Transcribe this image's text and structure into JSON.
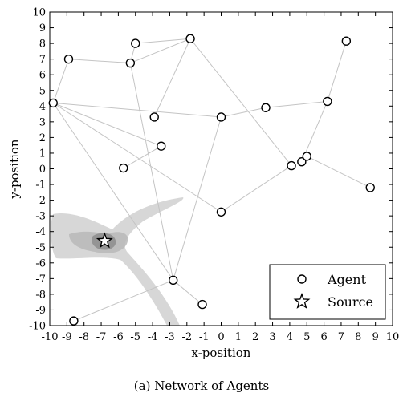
{
  "caption": "(a) Network of Agents",
  "chart_data": {
    "type": "scatter",
    "xlabel": "x-position",
    "ylabel": "y-position",
    "xlim": [
      -10,
      10
    ],
    "ylim": [
      -10,
      10
    ],
    "xticks": [
      -10,
      -9,
      -8,
      -7,
      -6,
      -5,
      -4,
      -3,
      -2,
      -1,
      0,
      1,
      2,
      3,
      4,
      5,
      6,
      7,
      8,
      9,
      10
    ],
    "yticks": [
      -10,
      -9,
      -8,
      -7,
      -6,
      -5,
      -4,
      -3,
      -2,
      -1,
      0,
      1,
      2,
      3,
      4,
      5,
      6,
      7,
      8,
      9,
      10
    ],
    "grid": false,
    "legend_position": "bottom-right",
    "series": [
      {
        "name": "Agent",
        "marker": "circle",
        "points": [
          [
            -8.9,
            7.0
          ],
          [
            -5.0,
            8.0
          ],
          [
            -5.3,
            6.75
          ],
          [
            -1.8,
            8.3
          ],
          [
            7.3,
            8.15
          ],
          [
            -9.8,
            4.2
          ],
          [
            -3.9,
            3.3
          ],
          [
            0.0,
            3.3
          ],
          [
            2.6,
            3.9
          ],
          [
            6.2,
            4.3
          ],
          [
            -3.5,
            1.45
          ],
          [
            -5.7,
            0.05
          ],
          [
            4.1,
            0.2
          ],
          [
            4.7,
            0.45
          ],
          [
            5.0,
            0.8
          ],
          [
            8.7,
            -1.2
          ],
          [
            0.0,
            -2.75
          ],
          [
            -2.8,
            -7.1
          ],
          [
            -1.1,
            -8.65
          ],
          [
            -8.6,
            -9.7
          ]
        ]
      },
      {
        "name": "Source",
        "marker": "star",
        "points": [
          [
            -6.8,
            -4.6
          ]
        ]
      }
    ],
    "edges": [
      [
        0,
        5
      ],
      [
        0,
        2
      ],
      [
        2,
        1
      ],
      [
        1,
        3
      ],
      [
        2,
        17
      ],
      [
        3,
        6
      ],
      [
        3,
        12
      ],
      [
        5,
        7
      ],
      [
        5,
        10
      ],
      [
        5,
        16
      ],
      [
        5,
        17
      ],
      [
        7,
        8
      ],
      [
        8,
        9
      ],
      [
        9,
        4
      ],
      [
        9,
        13
      ],
      [
        7,
        17
      ],
      [
        11,
        10
      ],
      [
        12,
        16
      ],
      [
        14,
        15
      ],
      [
        17,
        19
      ],
      [
        17,
        18
      ],
      [
        3,
        2
      ]
    ],
    "source_field_color": "#c8c8c8"
  }
}
